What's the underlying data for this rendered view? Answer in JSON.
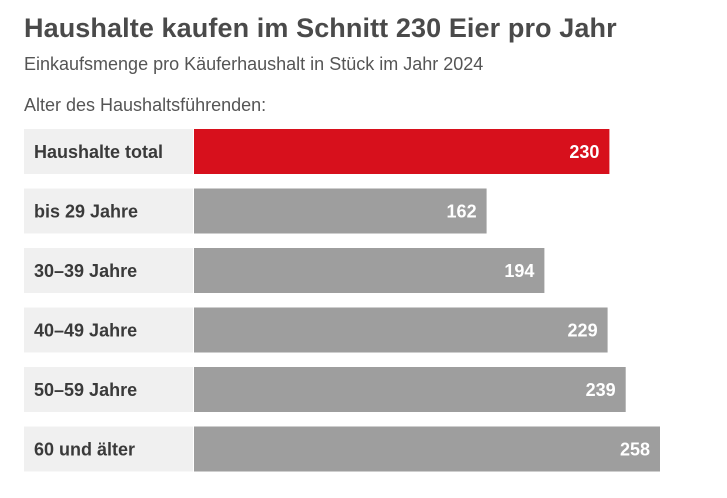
{
  "chart_data": {
    "type": "bar",
    "orientation": "horizontal",
    "title": "Haushalte kaufen im Schnitt 230 Eier pro Jahr",
    "subtitle": "Einkaufsmenge pro Käuferhaushalt in Stück im Jahr 2024",
    "category_axis_label": "Alter des Haushaltsführenden:",
    "categories": [
      "Haushalte total",
      "bis 29 Jahre",
      "30–39 Jahre",
      "40–49 Jahre",
      "50–59 Jahre",
      "60 und älter"
    ],
    "values": [
      230,
      162,
      194,
      229,
      239,
      258
    ],
    "highlight_index": 0,
    "xlim": [
      0,
      258
    ],
    "grid": false,
    "colors": {
      "highlight": "#d7101c",
      "bar": "#9e9e9e",
      "label_background": "#f0f0f0"
    }
  }
}
